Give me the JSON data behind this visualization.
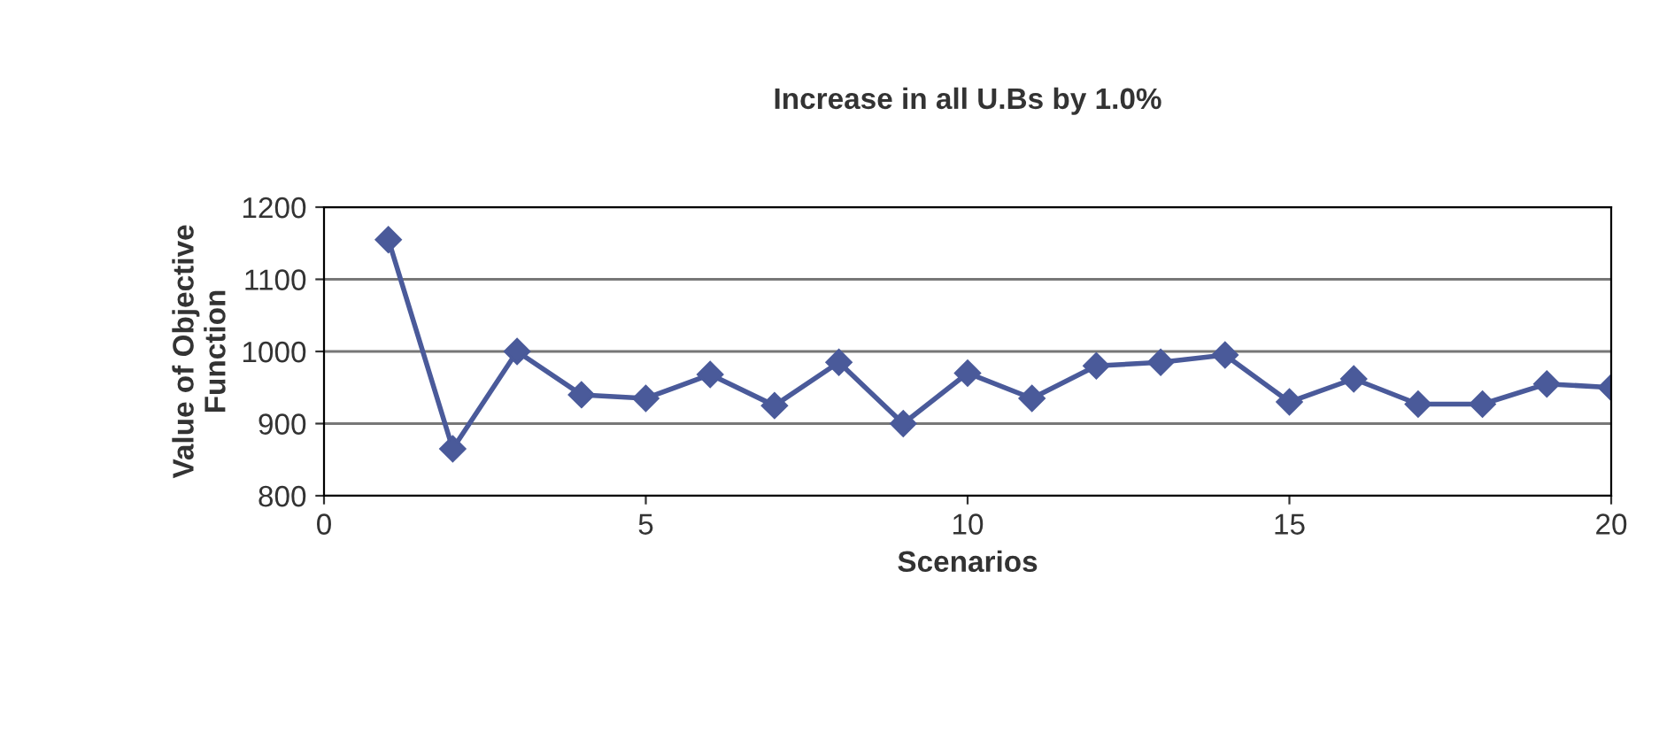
{
  "chart_data": {
    "type": "line",
    "title": "Increase in all U.Bs by 1.0%",
    "xlabel": "Scenarios",
    "ylabel": "Value of Objective\nFunction",
    "x": [
      1,
      2,
      3,
      4,
      5,
      6,
      7,
      8,
      9,
      10,
      11,
      12,
      13,
      14,
      15,
      16,
      17,
      18,
      19,
      20
    ],
    "series": [
      {
        "color": "#4a5a9a",
        "values": [
          1155,
          865,
          1000,
          940,
          935,
          968,
          925,
          985,
          900,
          970,
          935,
          980,
          985,
          995,
          930,
          962,
          927,
          927,
          955,
          950
        ]
      }
    ],
    "xlim": [
      0,
      20
    ],
    "xticks": [
      0,
      5,
      10,
      15,
      20
    ],
    "ylim": [
      800,
      1200
    ],
    "yticks": [
      800,
      900,
      1000,
      1100,
      1200
    ],
    "grid": "y",
    "marker": "diamond",
    "line_style": "solid",
    "legend": false
  }
}
